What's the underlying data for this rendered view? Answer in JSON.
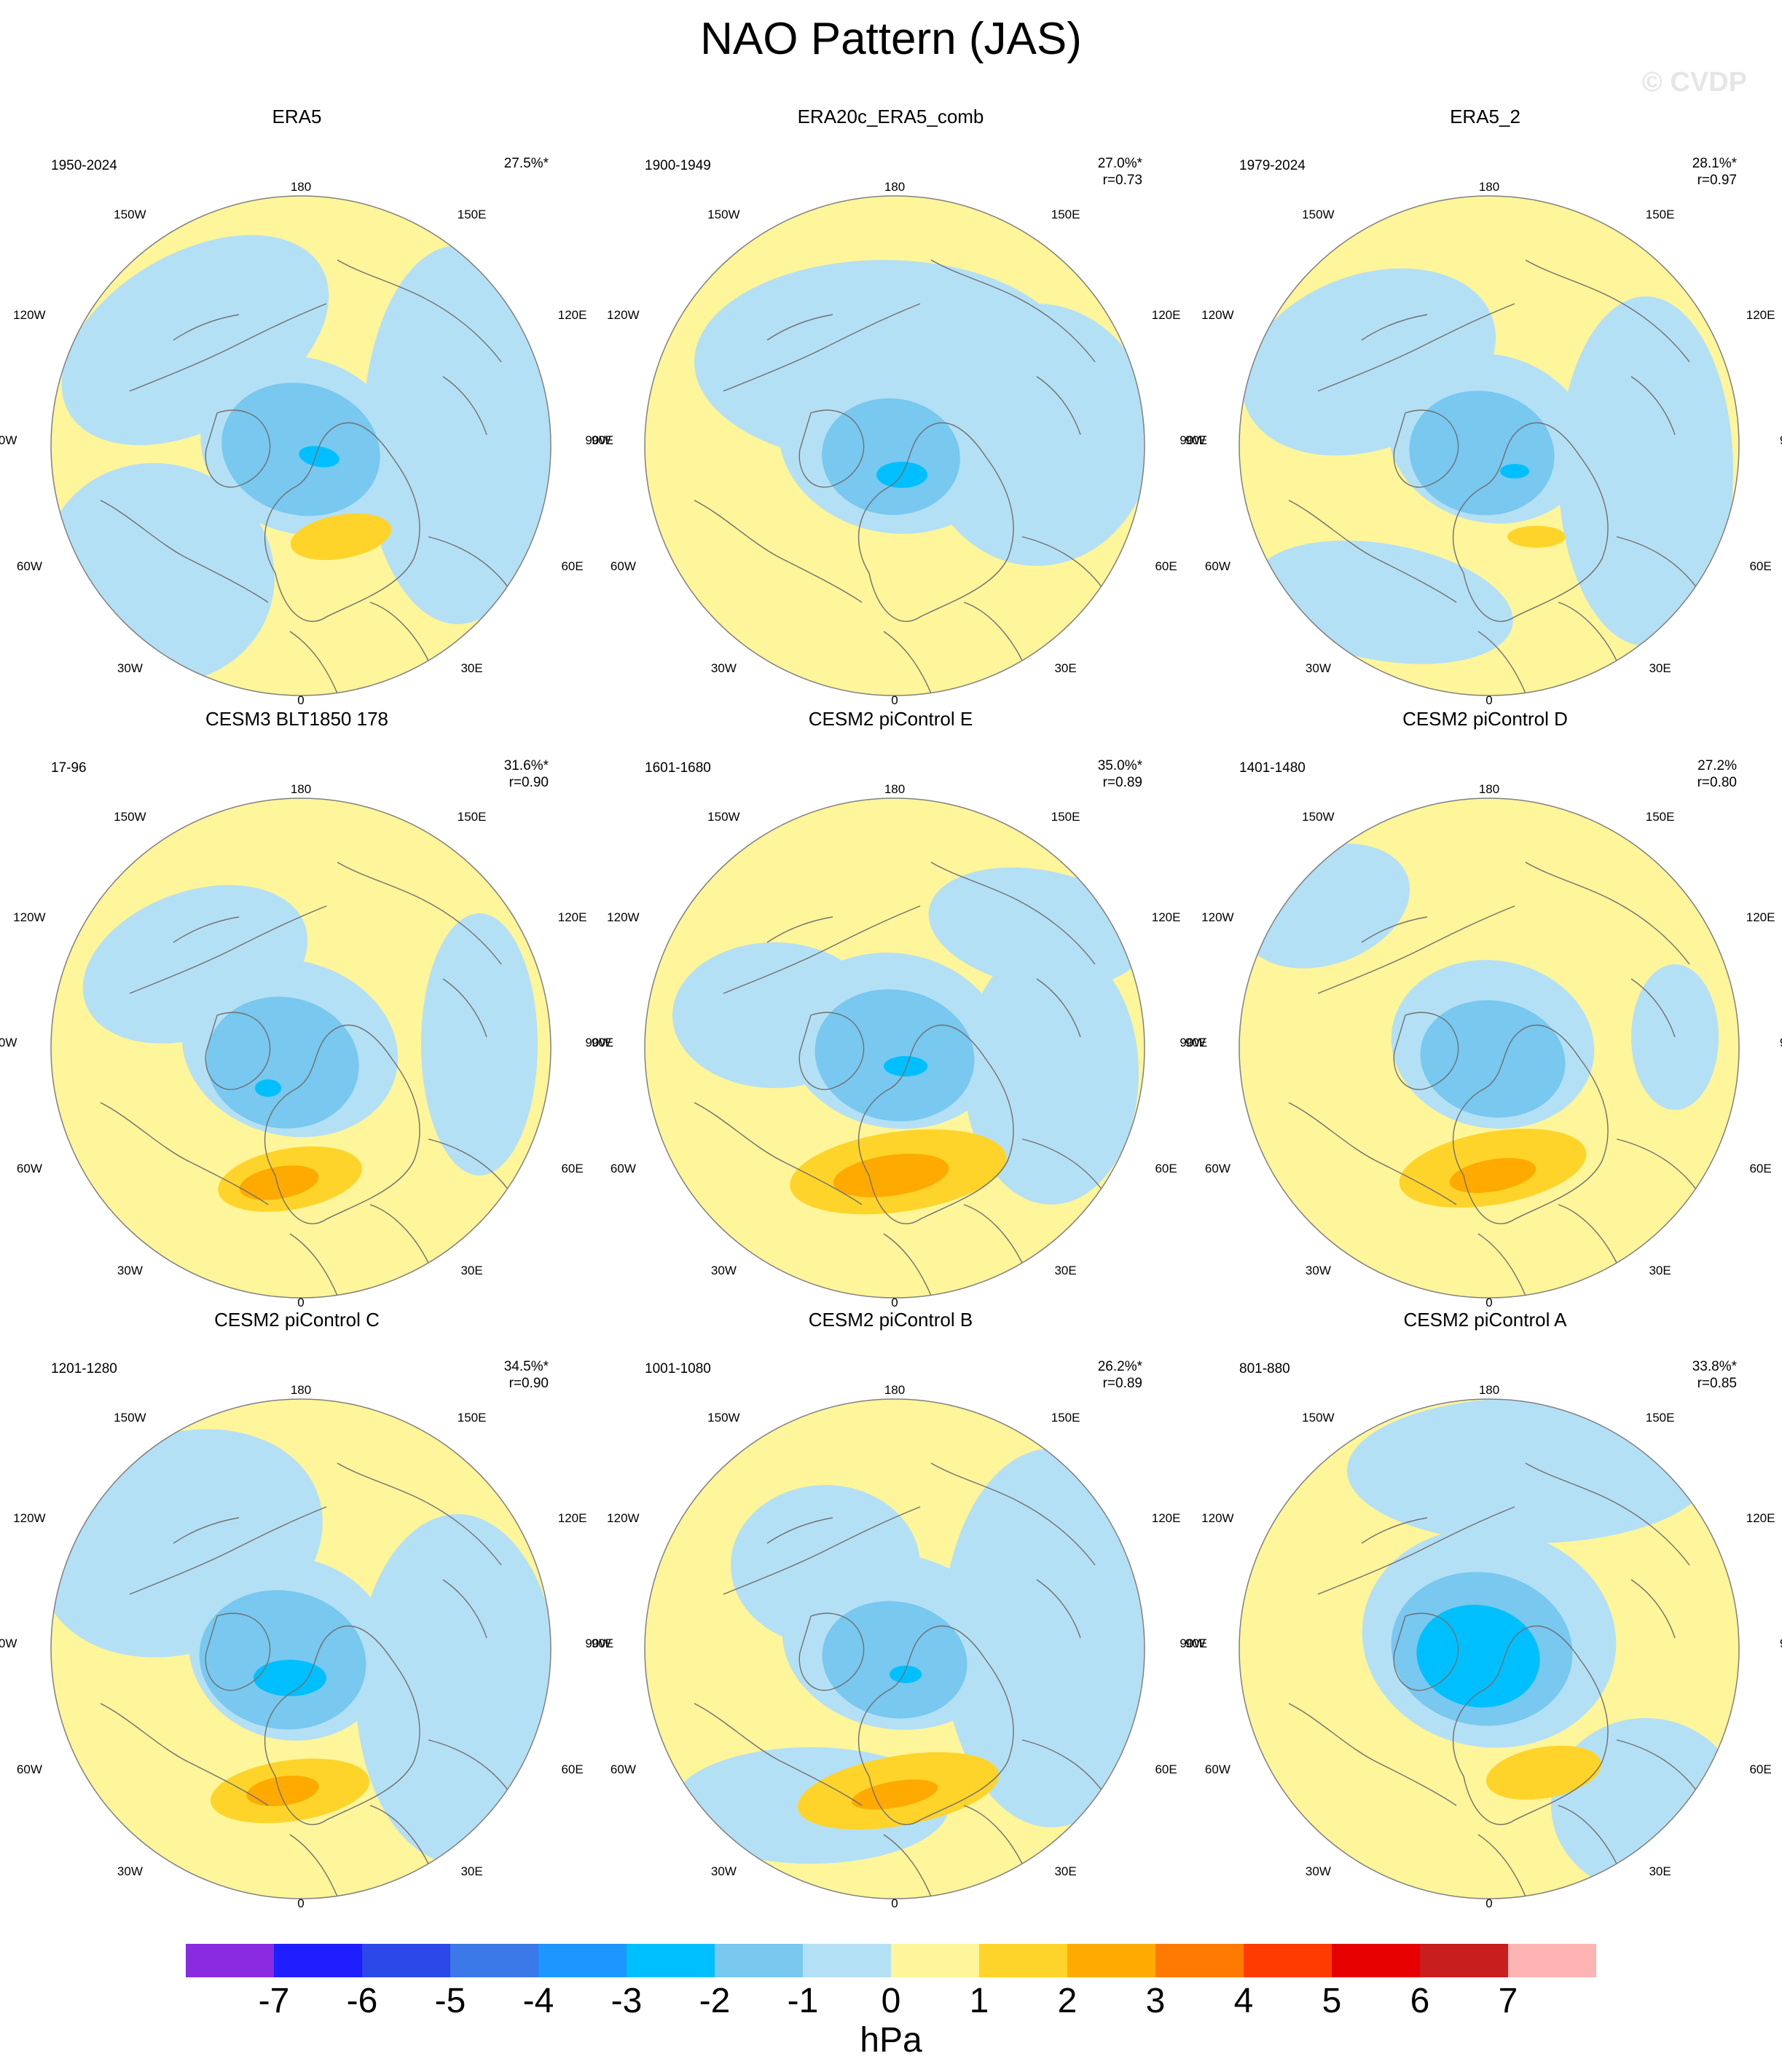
{
  "title": "NAO Pattern (JAS)",
  "watermark": "© CVDP",
  "lon_labels": [
    "180",
    "150E",
    "120E",
    "90E",
    "60E",
    "30E",
    "0",
    "30W",
    "60W",
    "90W",
    "120W",
    "150W"
  ],
  "panels": [
    {
      "name": "ERA5",
      "period": "1950-2024",
      "pct": "27.5%*",
      "r": ""
    },
    {
      "name": "ERA20c_ERA5_comb",
      "period": "1900-1949",
      "pct": "27.0%*",
      "r": "r=0.73"
    },
    {
      "name": "ERA5_2",
      "period": "1979-2024",
      "pct": "28.1%*",
      "r": "r=0.97"
    },
    {
      "name": "CESM3 BLT1850 178",
      "period": "17-96",
      "pct": "31.6%*",
      "r": "r=0.90"
    },
    {
      "name": "CESM2 piControl E",
      "period": "1601-1680",
      "pct": "35.0%*",
      "r": "r=0.89"
    },
    {
      "name": "CESM2 piControl D",
      "period": "1401-1480",
      "pct": "27.2%",
      "r": "r=0.80"
    },
    {
      "name": "CESM2 piControl C",
      "period": "1201-1280",
      "pct": "34.5%*",
      "r": "r=0.90"
    },
    {
      "name": "CESM2 piControl B",
      "period": "1001-1080",
      "pct": "26.2%*",
      "r": "r=0.89"
    },
    {
      "name": "CESM2 piControl A",
      "period": "801-880",
      "pct": "33.8%*",
      "r": "r=0.85"
    }
  ],
  "colorbar": {
    "units": "hPa",
    "labels": [
      "-7",
      "-6",
      "-5",
      "-4",
      "-3",
      "-2",
      "-1",
      "0",
      "1",
      "2",
      "3",
      "4",
      "5",
      "6",
      "7"
    ],
    "colors": [
      "#8a2be2",
      "#1e1eff",
      "#2b48e8",
      "#3b78e8",
      "#1e96ff",
      "#00bfff",
      "#78c8f0",
      "#b4e0f5",
      "#fff59a",
      "#ffd42a",
      "#ffaa00",
      "#ff7a00",
      "#ff3c00",
      "#e60000",
      "#c81e1e",
      "#ffb4b4"
    ]
  }
}
